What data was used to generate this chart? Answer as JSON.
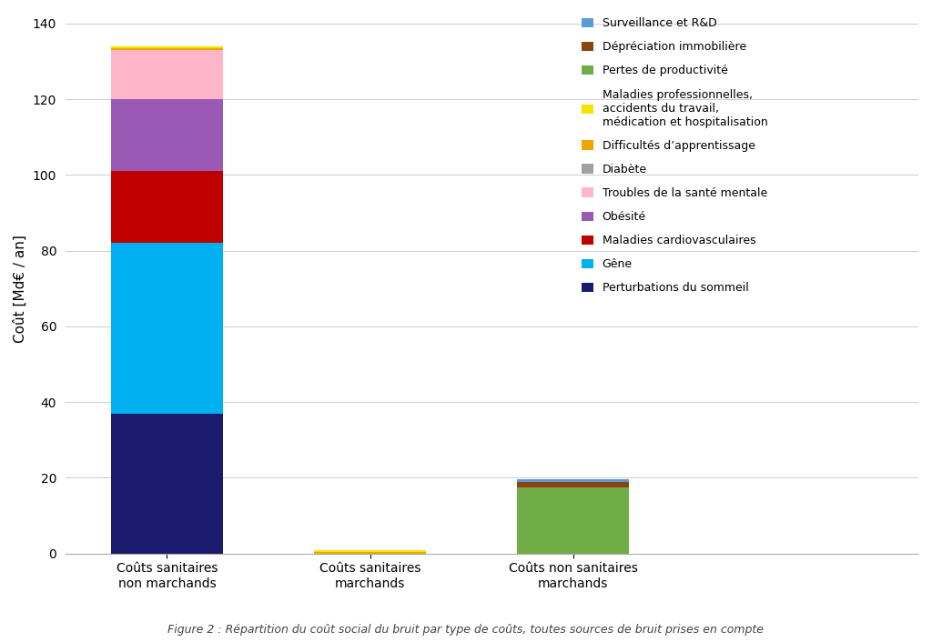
{
  "categories": [
    "Coûts sanitaires\nnon marchands",
    "Coûts sanitaires\nmarchands",
    "Coûts non sanitaires\nmarchands"
  ],
  "x_positions": [
    0.5,
    1.5,
    2.5
  ],
  "series": [
    {
      "label": "Perturbations du sommeil",
      "color": "#1a1a6e",
      "values": [
        37,
        0,
        0
      ]
    },
    {
      "label": "Gêne",
      "color": "#00b0f0",
      "values": [
        45,
        0,
        0
      ]
    },
    {
      "label": "Maladies cardiovasculaires",
      "color": "#c00000",
      "values": [
        19,
        0,
        0
      ]
    },
    {
      "label": "Obésité",
      "color": "#9b59b6",
      "values": [
        19,
        0,
        0
      ]
    },
    {
      "label": "Troubles de la santé mentale",
      "color": "#ffb6c8",
      "values": [
        13,
        0,
        0
      ]
    },
    {
      "label": "Diabète",
      "color": "#a0a0a0",
      "values": [
        0,
        0,
        0
      ]
    },
    {
      "label": "Difficultés d’apprentissage",
      "color": "#f0a500",
      "values": [
        0.5,
        0.5,
        0
      ]
    },
    {
      "label": "Maladies professionnelles,\naccidents du travail,\nmédication et hospitalisation",
      "color": "#f5e400",
      "values": [
        0.5,
        0.5,
        0
      ]
    },
    {
      "label": "Pertes de productivité",
      "color": "#70ad47",
      "values": [
        0,
        0,
        17.5
      ]
    },
    {
      "label": "Dépréciation immobilière",
      "color": "#8b4513",
      "values": [
        0,
        0,
        1.5
      ]
    },
    {
      "label": "Surveillance et R&D",
      "color": "#5b9bd5",
      "values": [
        0,
        0,
        0.7
      ]
    }
  ],
  "ylabel": "Coût [Md€ / an]",
  "ylim": [
    0,
    140
  ],
  "yticks": [
    0,
    20,
    40,
    60,
    80,
    100,
    120,
    140
  ],
  "bar_width": 0.55,
  "xlim": [
    0.0,
    4.2
  ],
  "background_color": "#ffffff",
  "caption": "Figure 2 : Répartition du coût social du bruit par type de coûts, toutes sources de bruit prises en compte",
  "legend_order": [
    10,
    9,
    8,
    7,
    6,
    5,
    4,
    3,
    2,
    1,
    0
  ],
  "legend_labels_ordered": [
    "Surveillance et R&D",
    "Dépréciation immobilière",
    "Pertes de productivité",
    "Maladies professionnelles,\naccidents du travail,\nmédication et hospitalisation",
    "Difficultés d’apprentissage",
    "Diabète",
    "Troubles de la santé mentale",
    "Obésité",
    "Maladies cardiovasculaires",
    "Gêne",
    "Perturbations du sommeil"
  ],
  "legend_colors_ordered": [
    "#5b9bd5",
    "#8b4513",
    "#70ad47",
    "#f5e400",
    "#f0a500",
    "#a0a0a0",
    "#ffb6c8",
    "#9b59b6",
    "#c00000",
    "#00b0f0",
    "#1a1a6e"
  ]
}
